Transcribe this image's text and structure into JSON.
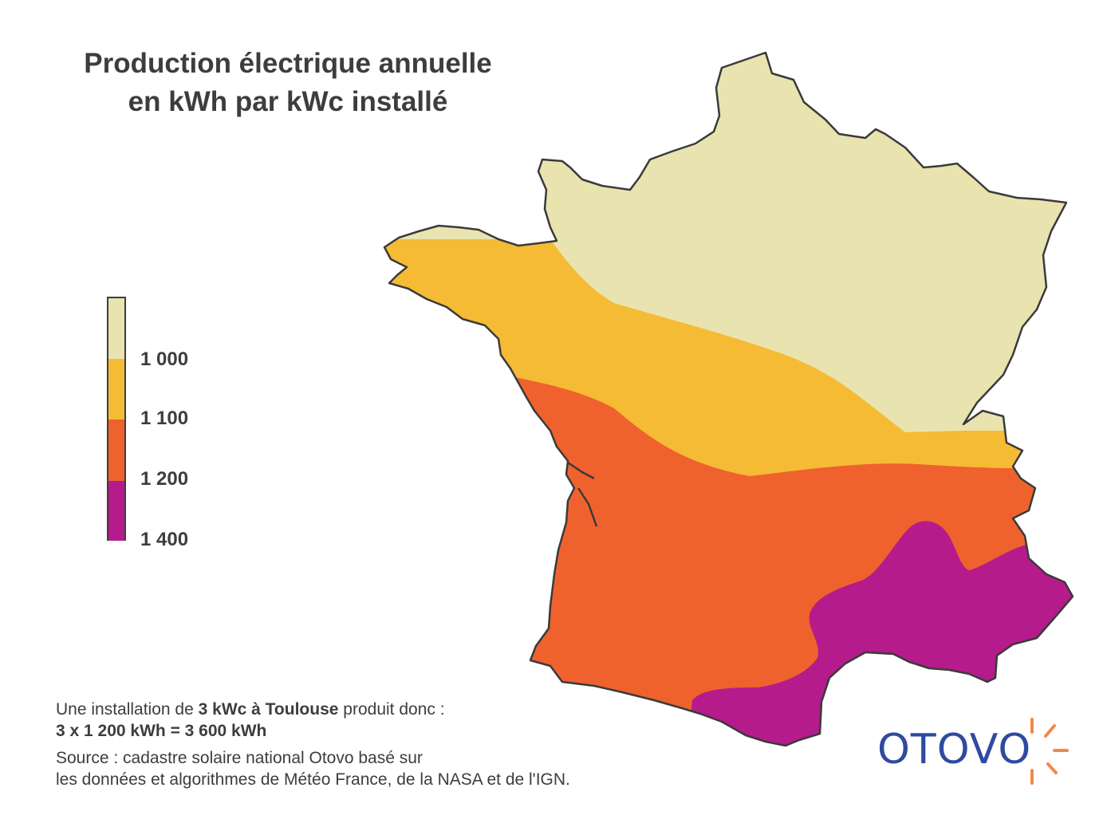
{
  "title": {
    "line1": "Production électrique annuelle",
    "line2": "en kWh par kWc installé"
  },
  "legend": {
    "items": [
      {
        "label": "1 000",
        "color": "#e9e3b0"
      },
      {
        "label": "1 100",
        "color": "#f5bb35"
      },
      {
        "label": "1 200",
        "color": "#ef622e"
      },
      {
        "label": "1 400",
        "color": "#b51b8b"
      }
    ]
  },
  "map": {
    "regions": [
      {
        "zone": "north",
        "color": "#e9e3b0"
      },
      {
        "zone": "west-center",
        "color": "#f5bb35"
      },
      {
        "zone": "south-west-center",
        "color": "#ef622e"
      },
      {
        "zone": "mediterranean",
        "color": "#b51b8b"
      }
    ],
    "outline_color": "#3a3a3a"
  },
  "footer": {
    "line1_pre": "Une installation de ",
    "line1_bold": "3 kWc à Toulouse",
    "line1_post": " produit donc :",
    "line2": "3 x 1 200 kWh = 3 600 kWh",
    "source_line1": "Source : cadastre solaire national Otovo basé sur",
    "source_line2": "les données et algorithmes de Météo France, de la NASA et de l'IGN."
  },
  "logo": {
    "text": "OTOVO",
    "text_color": "#2f4a9f",
    "ray_color": "#f08a4b",
    "icon": "sun-rays-icon"
  }
}
